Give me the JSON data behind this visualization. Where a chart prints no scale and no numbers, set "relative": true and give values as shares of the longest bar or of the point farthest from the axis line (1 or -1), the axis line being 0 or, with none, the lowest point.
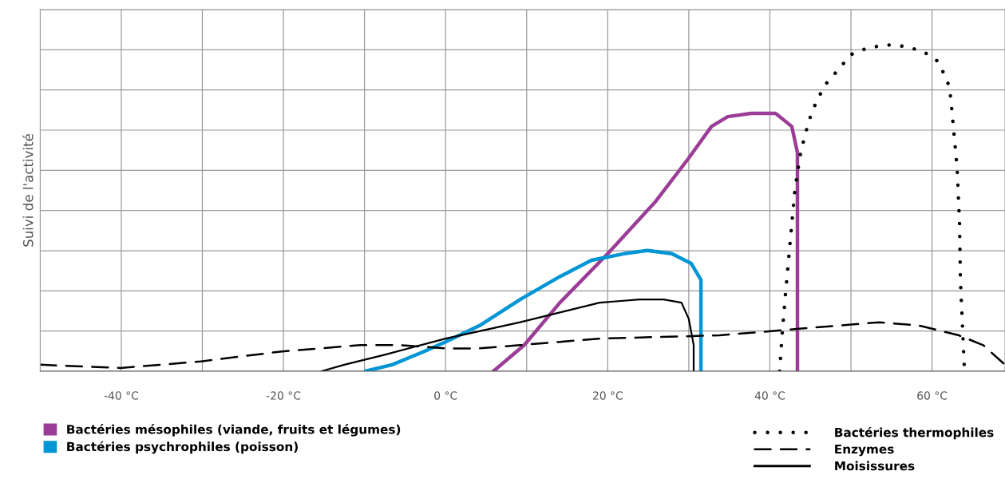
{
  "chart_data": {
    "type": "line",
    "ylabel": "Suivi de l'activité",
    "relative": true,
    "xlim": [
      -50,
      69
    ],
    "xticks": [
      {
        "value": -50,
        "label": null
      },
      {
        "value": -40,
        "label": "-40 °C"
      },
      {
        "value": -30,
        "label": null
      },
      {
        "value": -20,
        "label": "-20 °C"
      },
      {
        "value": -10,
        "label": null
      },
      {
        "value": 0,
        "label": "0 °C"
      },
      {
        "value": 10,
        "label": null
      },
      {
        "value": 20,
        "label": "20 °C"
      },
      {
        "value": 30,
        "label": null
      },
      {
        "value": 40,
        "label": "40 °C"
      },
      {
        "value": 50,
        "label": null
      },
      {
        "value": 60,
        "label": "60 °C"
      }
    ],
    "grid": true,
    "legend": "bottom",
    "tick_labels": "x",
    "series": [
      {
        "name": "Bactéries mésophiles (viande, fruits et légumes)",
        "color": "#9b3d96",
        "x": [
          5.9,
          9.7,
          14.1,
          20.0,
          25.9,
          29.9,
          32.8,
          34.8,
          37.7,
          40.7,
          42.7,
          43.4,
          43.4,
          43.4
        ],
        "values": [
          0,
          0.08,
          0.21,
          0.36,
          0.52,
          0.65,
          0.75,
          0.78,
          0.79,
          0.79,
          0.75,
          0.67,
          0.4,
          0
        ]
      },
      {
        "name": "Bactéries psychrophiles (poisson)",
        "color": "#0095d5",
        "x": [
          -9.9,
          -6.6,
          -2.7,
          0,
          4.2,
          9.2,
          14.1,
          18.0,
          22.0,
          24.9,
          27.9,
          30.3,
          31.5,
          31.5
        ],
        "values": [
          0,
          0.02,
          0.06,
          0.09,
          0.14,
          0.22,
          0.29,
          0.34,
          0.36,
          0.37,
          0.36,
          0.33,
          0.28,
          0
        ]
      },
      {
        "name": "Bactéries thermophiles",
        "color": "#000000",
        "line_style": "dotted",
        "x": [
          41.2,
          41.5,
          41.9,
          42.3,
          42.7,
          43.1,
          43.8,
          44.4,
          45.0,
          45.8,
          46.9,
          48.3,
          50.0,
          52.0,
          54.4,
          56.7,
          58.9,
          60.7,
          61.9,
          62.3,
          62.7,
          63.1,
          63.4,
          63.5,
          63.7,
          64.0
        ],
        "values": [
          0,
          0.11,
          0.23,
          0.34,
          0.45,
          0.56,
          0.67,
          0.73,
          0.78,
          0.83,
          0.88,
          0.92,
          0.97,
          0.99,
          1.0,
          0.995,
          0.98,
          0.95,
          0.89,
          0.84,
          0.73,
          0.62,
          0.45,
          0.28,
          0.17,
          0
        ]
      },
      {
        "name": "Enzymes",
        "color": "#000000",
        "line_style": "dashed",
        "x": [
          -50,
          -40.1,
          -30.2,
          -20.4,
          -10.5,
          -5.6,
          0,
          4.2,
          9.2,
          19.0,
          33.8,
          43.6,
          53.5,
          58.4,
          63.3,
          66.3,
          69.0
        ],
        "values": [
          0.02,
          0.01,
          0.03,
          0.06,
          0.08,
          0.08,
          0.07,
          0.07,
          0.08,
          0.1,
          0.11,
          0.13,
          0.15,
          0.14,
          0.11,
          0.08,
          0.02
        ]
      },
      {
        "name": "Moisissures",
        "color": "#000000",
        "line_style": "solid",
        "x": [
          -15.3,
          -12.5,
          -7.6,
          0,
          9.2,
          19.0,
          23.9,
          26.9,
          29.1,
          30.0,
          30.6,
          30.6
        ],
        "values": [
          0,
          0.02,
          0.05,
          0.1,
          0.15,
          0.21,
          0.22,
          0.22,
          0.21,
          0.16,
          0.08,
          0
        ]
      }
    ]
  }
}
